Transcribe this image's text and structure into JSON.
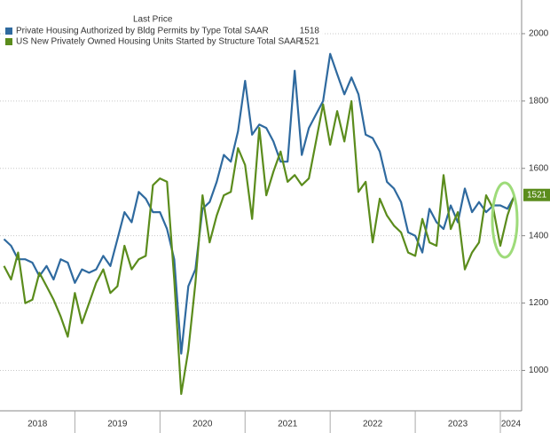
{
  "chart_data": {
    "type": "line",
    "legend_title": "Last Price",
    "x": [
      2018.167,
      2018.25,
      2018.333,
      2018.417,
      2018.5,
      2018.583,
      2018.667,
      2018.75,
      2018.833,
      2018.917,
      2019.0,
      2019.083,
      2019.167,
      2019.25,
      2019.333,
      2019.417,
      2019.5,
      2019.583,
      2019.667,
      2019.75,
      2019.833,
      2019.917,
      2020.0,
      2020.083,
      2020.167,
      2020.25,
      2020.333,
      2020.417,
      2020.5,
      2020.583,
      2020.667,
      2020.75,
      2020.833,
      2020.917,
      2021.0,
      2021.083,
      2021.167,
      2021.25,
      2021.333,
      2021.417,
      2021.5,
      2021.583,
      2021.667,
      2021.75,
      2021.833,
      2021.917,
      2022.0,
      2022.083,
      2022.167,
      2022.25,
      2022.333,
      2022.417,
      2022.5,
      2022.583,
      2022.667,
      2022.75,
      2022.833,
      2022.917,
      2023.0,
      2023.083,
      2023.167,
      2023.25,
      2023.333,
      2023.417,
      2023.5,
      2023.583,
      2023.667,
      2023.75,
      2023.833,
      2023.917,
      2024.0,
      2024.083,
      2024.167
    ],
    "series": [
      {
        "name": "Private Housing Authorized by Bldg Permits by Type Total SAAR",
        "color": "#2f6a9f",
        "values": [
          1390,
          1370,
          1330,
          1330,
          1320,
          1280,
          1310,
          1270,
          1330,
          1320,
          1260,
          1300,
          1290,
          1300,
          1340,
          1310,
          1390,
          1470,
          1440,
          1530,
          1510,
          1470,
          1470,
          1420,
          1330,
          1050,
          1250,
          1300,
          1480,
          1500,
          1560,
          1640,
          1620,
          1710,
          1860,
          1700,
          1730,
          1720,
          1680,
          1620,
          1620,
          1890,
          1640,
          1720,
          1760,
          1800,
          1940,
          1880,
          1820,
          1870,
          1820,
          1700,
          1690,
          1650,
          1560,
          1540,
          1500,
          1410,
          1400,
          1350,
          1480,
          1440,
          1420,
          1490,
          1440,
          1540,
          1470,
          1500,
          1470,
          1490,
          1490,
          1480,
          1518
        ]
      },
      {
        "name": "US New Privately Owned Housing Units Started by Structure Total SAAR",
        "color": "#5b8c1c",
        "values": [
          1310,
          1270,
          1350,
          1200,
          1210,
          1290,
          1250,
          1210,
          1160,
          1100,
          1230,
          1140,
          1200,
          1260,
          1300,
          1230,
          1250,
          1370,
          1300,
          1330,
          1340,
          1550,
          1570,
          1560,
          1270,
          930,
          1060,
          1260,
          1520,
          1380,
          1460,
          1520,
          1530,
          1660,
          1610,
          1450,
          1720,
          1520,
          1590,
          1650,
          1560,
          1580,
          1550,
          1570,
          1680,
          1790,
          1670,
          1770,
          1680,
          1800,
          1530,
          1560,
          1380,
          1510,
          1460,
          1430,
          1410,
          1350,
          1340,
          1450,
          1380,
          1370,
          1580,
          1420,
          1470,
          1300,
          1350,
          1380,
          1520,
          1480,
          1370,
          1460,
          1521
        ]
      }
    ],
    "xlim": [
      2018.12,
      2024.25
    ],
    "xticks": [
      2018,
      2019,
      2020,
      2021,
      2022,
      2023,
      2024
    ],
    "ylim": [
      880,
      2100
    ],
    "yticks": [
      1000,
      1200,
      1400,
      1600,
      1800,
      2000
    ],
    "grid": true
  }
}
